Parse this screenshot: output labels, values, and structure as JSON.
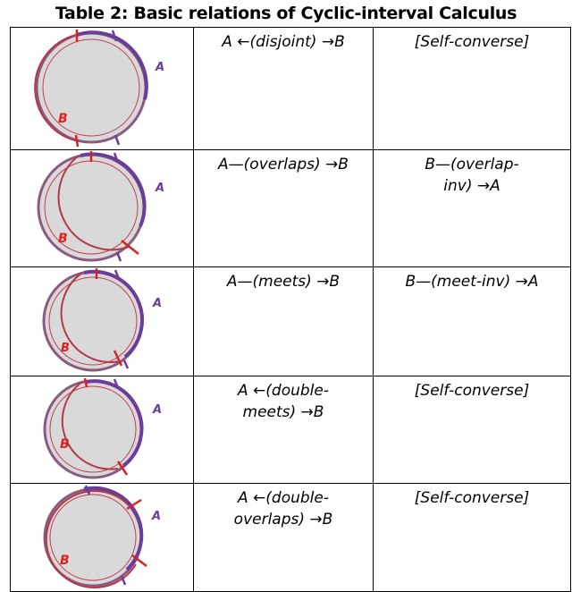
{
  "title": "Table 2: Basic relations of Cyclic-interval Calculus",
  "colors": {
    "interval_a": "#6a3d9a",
    "interval_b": "#d62020",
    "disk_fill": "#d9d9d9",
    "ring": "#8a5a80"
  },
  "rows": [
    {
      "label_a": "A",
      "label_b": "B",
      "relation": "A ←(disjoint) →B",
      "converse": "[Self-converse]"
    },
    {
      "label_a": "A",
      "label_b": "B",
      "relation": "A—(overlaps) →B",
      "converse": "B—(overlap-\ninv) →A"
    },
    {
      "label_a": "A",
      "label_b": "B",
      "relation": "A—(meets) →B",
      "converse": "B—(meet-inv) →A"
    },
    {
      "label_a": "A",
      "label_b": "B",
      "relation": "A ←(double-\nmeets) →B",
      "converse": "[Self-converse]"
    },
    {
      "label_a": "A",
      "label_b": "B",
      "relation": "A ←(double-\noverlaps) →B",
      "converse": "[Self-converse]"
    }
  ]
}
